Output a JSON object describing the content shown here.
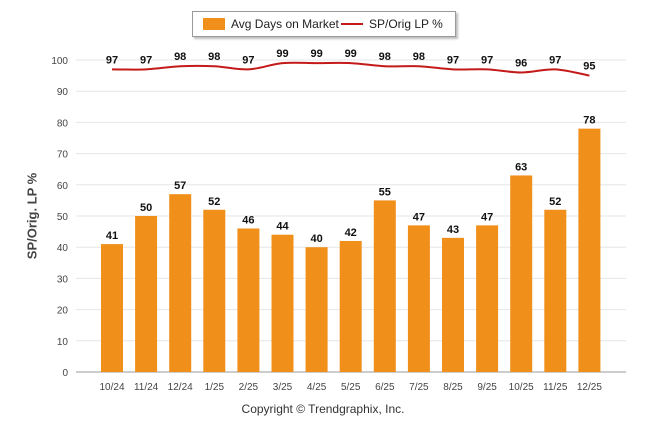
{
  "legend": {
    "bar_label": "Avg Days on Market",
    "line_label": "SP/Orig LP %"
  },
  "copyright": "Copyright © Trendgraphix, Inc.",
  "colors": {
    "bar": "#f0901a",
    "line": "#c41a1a",
    "grid": "#e6e6e6",
    "axis": "#999999"
  },
  "chart_data": {
    "type": "bar",
    "categories": [
      "10/24",
      "11/24",
      "12/24",
      "1/25",
      "2/25",
      "3/25",
      "4/25",
      "5/25",
      "6/25",
      "7/25",
      "8/25",
      "9/25",
      "10/25",
      "11/25",
      "12/25"
    ],
    "series": [
      {
        "name": "Avg Days on Market",
        "type": "bar",
        "values": [
          41,
          50,
          57,
          52,
          46,
          44,
          40,
          42,
          55,
          47,
          43,
          47,
          63,
          52,
          78
        ]
      },
      {
        "name": "SP/Orig LP %",
        "type": "line",
        "values": [
          97,
          97,
          98,
          98,
          97,
          99,
          99,
          99,
          98,
          98,
          97,
          97,
          96,
          97,
          95
        ]
      }
    ],
    "ylabel": "SP/Orig. LP %",
    "ylim": [
      0,
      100
    ],
    "yticks": [
      0,
      10,
      20,
      30,
      40,
      50,
      60,
      70,
      80,
      90,
      100
    ],
    "grid": true,
    "legend_position": "top-center"
  }
}
